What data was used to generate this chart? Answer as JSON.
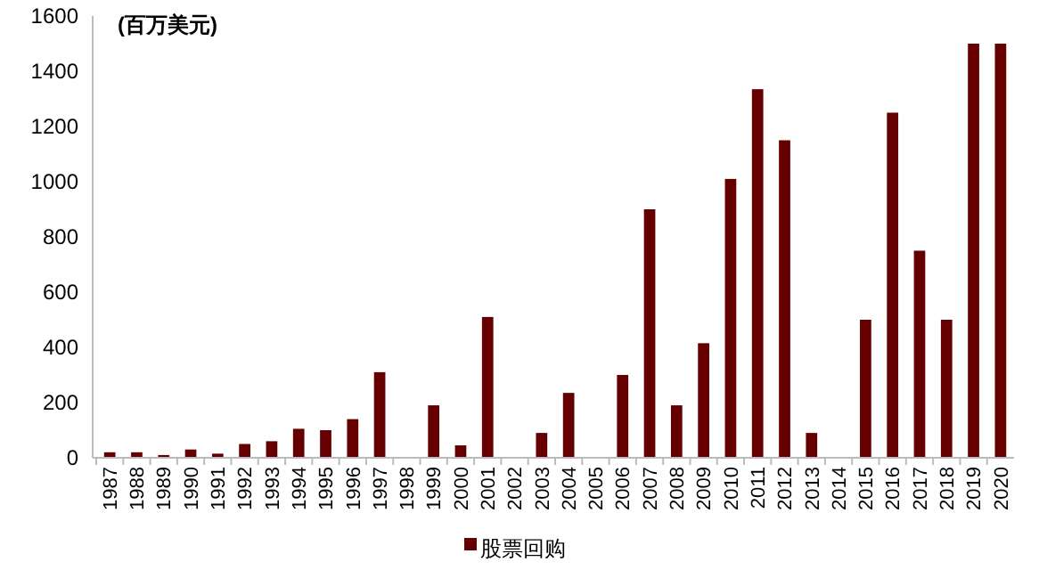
{
  "chart_data": {
    "type": "bar",
    "ylabel": "(百万美元)",
    "categories": [
      "1987",
      "1988",
      "1989",
      "1990",
      "1991",
      "1992",
      "1993",
      "1994",
      "1995",
      "1996",
      "1997",
      "1998",
      "1999",
      "2000",
      "2001",
      "2002",
      "2003",
      "2004",
      "2005",
      "2006",
      "2007",
      "2008",
      "2009",
      "2010",
      "2011",
      "2012",
      "2013",
      "2014",
      "2015",
      "2016",
      "2017",
      "2018",
      "2019",
      "2020"
    ],
    "series": [
      {
        "name": "股票回购",
        "color": "#660000",
        "values": [
          20,
          20,
          10,
          30,
          15,
          50,
          60,
          105,
          100,
          140,
          310,
          0,
          190,
          45,
          510,
          0,
          90,
          235,
          0,
          300,
          900,
          190,
          415,
          1010,
          1335,
          1150,
          90,
          0,
          500,
          1250,
          750,
          500,
          1500,
          1500
        ]
      }
    ],
    "ylim": [
      0,
      1600
    ],
    "yticks": [
      0,
      200,
      400,
      600,
      800,
      1000,
      1200,
      1400,
      1600
    ],
    "grid": false,
    "legend": "bottom"
  }
}
